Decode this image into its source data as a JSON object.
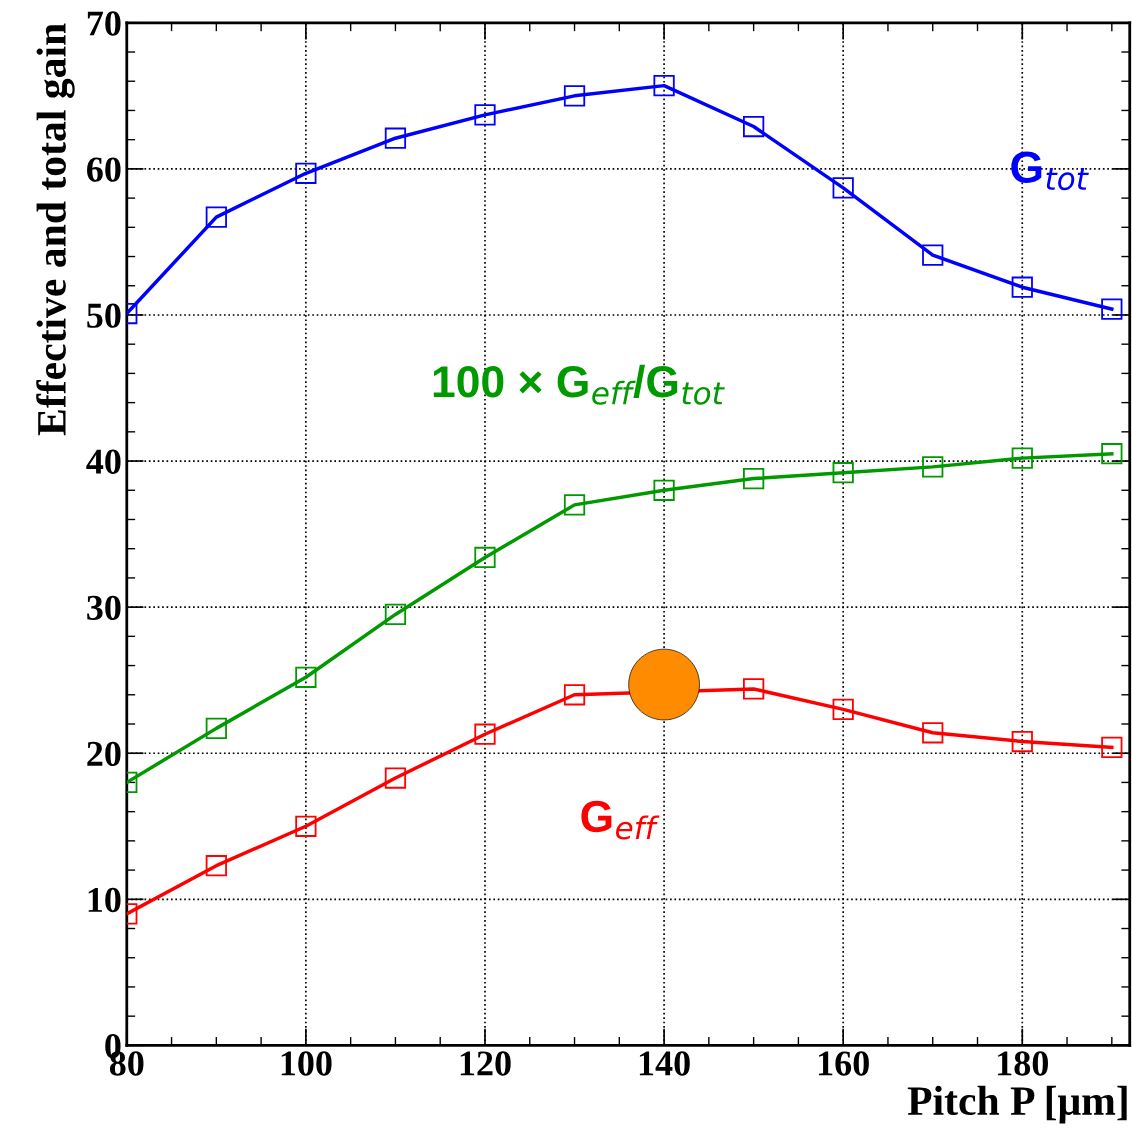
{
  "chart_data": {
    "type": "line",
    "xlabel": "Pitch P [μm]",
    "ylabel": "Effective and total gain",
    "x": [
      80,
      90,
      100,
      110,
      120,
      130,
      140,
      150,
      160,
      170,
      180,
      190
    ],
    "xlim": [
      80,
      192
    ],
    "xticks": [
      80,
      100,
      120,
      140,
      160,
      180
    ],
    "ylim": [
      0,
      70
    ],
    "yticks": [
      0,
      10,
      20,
      30,
      40,
      50,
      60,
      70
    ],
    "grid": true,
    "marker": "square",
    "line_style": "solid",
    "series": [
      {
        "name": "G$_{tot}$",
        "color": "#0000ff",
        "values": [
          50.1,
          56.7,
          59.7,
          62.1,
          63.7,
          65.0,
          65.7,
          62.9,
          58.7,
          54.1,
          51.9,
          50.4
        ]
      },
      {
        "name": "100 × G$_{eff}$/G$_{tot}$",
        "color": "#009900",
        "values": [
          18.0,
          21.7,
          25.2,
          29.5,
          33.4,
          37.0,
          38.0,
          38.8,
          39.2,
          39.6,
          40.2,
          40.5
        ]
      },
      {
        "name": "G$_{eff}$",
        "color": "#ff0000",
        "values": [
          9.0,
          12.3,
          15.0,
          18.3,
          21.3,
          24.0,
          null,
          24.4,
          23.0,
          21.4,
          20.8,
          20.4
        ]
      },
      {
        "type": "scatter",
        "color": "#ff8c00",
        "marker": "circle",
        "x": [
          140
        ],
        "values": [
          24.7
        ]
      }
    ]
  }
}
